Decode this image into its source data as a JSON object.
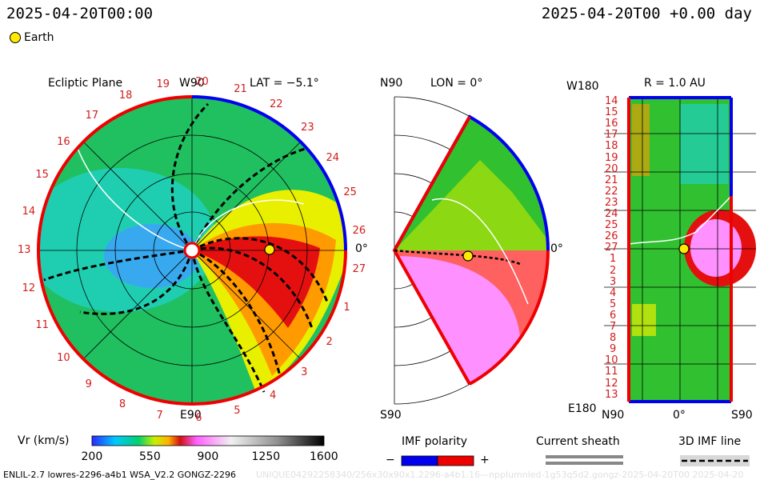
{
  "header": {
    "timestamp_left": "2025-04-20T00:00",
    "timestamp_right": "2025-04-20T00 +0.00 day",
    "legend_earth": "Earth"
  },
  "ecliptic": {
    "title": "Ecliptic Plane",
    "lat_label": "LAT = −5.1°",
    "top_label": "W90",
    "bottom_label": "E90",
    "right_label": "0°",
    "carrington_ticks": [
      "20",
      "21",
      "22",
      "23",
      "24",
      "25",
      "26",
      "27",
      "1",
      "2",
      "3",
      "4",
      "5",
      "6",
      "7",
      "8",
      "9",
      "10",
      "11",
      "12",
      "13",
      "14",
      "15",
      "16",
      "17",
      "18",
      "19"
    ]
  },
  "meridional": {
    "north_label": "N90",
    "south_label": "S90",
    "lon_label": "LON = 0°",
    "right_label": "0°"
  },
  "sphere": {
    "title": "R = 1.0 AU",
    "top_left": "W180",
    "bottom_left": "E180",
    "bottom_left_axis": "N90",
    "bottom_mid_axis": "0°",
    "bottom_right_axis": "S90",
    "row_ticks": [
      "14",
      "15",
      "16",
      "17",
      "18",
      "19",
      "20",
      "21",
      "22",
      "23",
      "24",
      "25",
      "26",
      "27",
      "1",
      "2",
      "3",
      "4",
      "5",
      "6",
      "7",
      "8",
      "9",
      "10",
      "11",
      "12",
      "13"
    ]
  },
  "colorbar": {
    "title": "Vr (km/s)",
    "ticks": [
      "200",
      "550",
      "900",
      "1250",
      "1600"
    ],
    "range": [
      200,
      1600
    ]
  },
  "imf": {
    "title": "IMF polarity",
    "minus": "−",
    "plus": "+",
    "colors": {
      "negative": "#0000ee",
      "positive": "#ee0000"
    }
  },
  "sheath": {
    "title": "Current sheath"
  },
  "imf_line": {
    "title": "3D IMF line"
  },
  "footer": {
    "model": "ENLIL-2.7 lowres-2296-a4b1 WSA_V2.2 GONGZ-2296",
    "watermark": "UNIQUE04292258340/256x30x90x1.2296-a4b1.16—npplumnled-1g53q5d2.gongz-2025-04-20T00    2025-04-20"
  }
}
